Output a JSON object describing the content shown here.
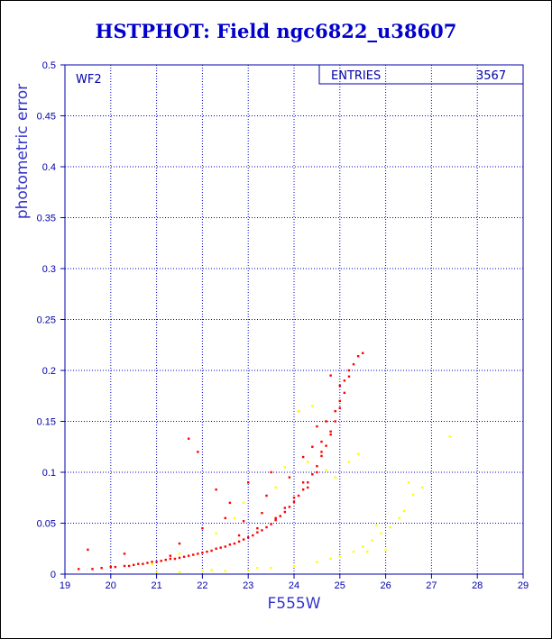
{
  "title": "HSTPHOT: Field ngc6822_u38607",
  "chart_data": {
    "type": "scatter",
    "panel_label": "WF2",
    "stats_label": "ENTRIES",
    "stats_value": "3567",
    "xlabel": "F555W",
    "ylabel": "photometric error",
    "xlim": [
      19,
      29
    ],
    "ylim": [
      0,
      0.5
    ],
    "x_ticks": [
      "19",
      "20",
      "21",
      "22",
      "23",
      "24",
      "25",
      "26",
      "27",
      "28",
      "29"
    ],
    "y_ticks": [
      "0",
      "0.05",
      "0.1",
      "0.15",
      "0.2",
      "0.25",
      "0.3",
      "0.35",
      "0.4",
      "0.45",
      "0.5"
    ],
    "grid": true,
    "series": [
      {
        "color": "#ff0000",
        "points": [
          [
            19.3,
            0.005
          ],
          [
            19.5,
            0.024
          ],
          [
            19.6,
            0.005
          ],
          [
            19.8,
            0.006
          ],
          [
            20.0,
            0.007
          ],
          [
            20.1,
            0.007
          ],
          [
            20.3,
            0.008
          ],
          [
            20.4,
            0.008
          ],
          [
            20.5,
            0.009
          ],
          [
            20.6,
            0.01
          ],
          [
            20.7,
            0.01
          ],
          [
            20.8,
            0.011
          ],
          [
            20.9,
            0.012
          ],
          [
            21.0,
            0.012
          ],
          [
            21.1,
            0.013
          ],
          [
            21.2,
            0.014
          ],
          [
            21.3,
            0.015
          ],
          [
            21.4,
            0.015
          ],
          [
            21.5,
            0.016
          ],
          [
            21.6,
            0.017
          ],
          [
            21.7,
            0.018
          ],
          [
            21.8,
            0.019
          ],
          [
            21.9,
            0.02
          ],
          [
            22.0,
            0.021
          ],
          [
            22.1,
            0.022
          ],
          [
            22.2,
            0.023
          ],
          [
            22.3,
            0.025
          ],
          [
            22.4,
            0.026
          ],
          [
            22.5,
            0.027
          ],
          [
            22.6,
            0.029
          ],
          [
            22.7,
            0.03
          ],
          [
            22.8,
            0.032
          ],
          [
            22.9,
            0.034
          ],
          [
            23.0,
            0.036
          ],
          [
            23.1,
            0.038
          ],
          [
            23.2,
            0.041
          ],
          [
            23.3,
            0.043
          ],
          [
            23.4,
            0.046
          ],
          [
            23.5,
            0.049
          ],
          [
            23.6,
            0.053
          ],
          [
            23.7,
            0.057
          ],
          [
            23.8,
            0.061
          ],
          [
            23.9,
            0.066
          ],
          [
            24.0,
            0.071
          ],
          [
            24.1,
            0.077
          ],
          [
            24.2,
            0.083
          ],
          [
            24.3,
            0.09
          ],
          [
            24.4,
            0.098
          ],
          [
            24.5,
            0.106
          ],
          [
            24.6,
            0.116
          ],
          [
            24.7,
            0.126
          ],
          [
            24.8,
            0.137
          ],
          [
            24.9,
            0.15
          ],
          [
            25.0,
            0.163
          ],
          [
            25.1,
            0.178
          ],
          [
            25.2,
            0.194
          ],
          [
            25.3,
            0.206
          ],
          [
            25.4,
            0.214
          ],
          [
            25.5,
            0.217
          ],
          [
            24.2,
            0.09
          ],
          [
            24.5,
            0.1
          ],
          [
            24.8,
            0.14
          ],
          [
            25.0,
            0.17
          ],
          [
            25.2,
            0.2
          ],
          [
            24.9,
            0.16
          ],
          [
            24.6,
            0.12
          ],
          [
            24.3,
            0.085
          ],
          [
            24.0,
            0.075
          ],
          [
            23.6,
            0.055
          ],
          [
            23.2,
            0.045
          ],
          [
            22.8,
            0.038
          ],
          [
            23.8,
            0.065
          ],
          [
            21.7,
            0.133
          ],
          [
            21.9,
            0.12
          ],
          [
            22.3,
            0.083
          ],
          [
            23.5,
            0.1
          ],
          [
            23.0,
            0.09
          ],
          [
            22.6,
            0.07
          ],
          [
            23.4,
            0.077
          ],
          [
            24.2,
            0.115
          ],
          [
            24.4,
            0.125
          ],
          [
            23.9,
            0.095
          ],
          [
            22.9,
            0.052
          ],
          [
            22.0,
            0.045
          ],
          [
            21.5,
            0.03
          ],
          [
            20.3,
            0.02
          ],
          [
            24.7,
            0.15
          ],
          [
            25.1,
            0.19
          ],
          [
            24.8,
            0.195
          ],
          [
            24.1,
            0.16
          ],
          [
            23.3,
            0.06
          ],
          [
            22.5,
            0.055
          ],
          [
            21.3,
            0.018
          ],
          [
            24.6,
            0.13
          ],
          [
            25.0,
            0.185
          ],
          [
            24.5,
            0.145
          ]
        ]
      },
      {
        "color": "#ffff00",
        "points": [
          [
            21.0,
            0.002
          ],
          [
            21.5,
            0.002
          ],
          [
            22.0,
            0.003
          ],
          [
            22.5,
            0.003
          ],
          [
            23.0,
            0.004
          ],
          [
            23.5,
            0.006
          ],
          [
            24.0,
            0.008
          ],
          [
            24.5,
            0.012
          ],
          [
            25.0,
            0.017
          ],
          [
            25.3,
            0.022
          ],
          [
            25.5,
            0.027
          ],
          [
            25.7,
            0.033
          ],
          [
            25.9,
            0.04
          ],
          [
            26.1,
            0.046
          ],
          [
            26.3,
            0.055
          ],
          [
            26.6,
            0.078
          ],
          [
            26.8,
            0.085
          ],
          [
            26.5,
            0.09
          ],
          [
            27.4,
            0.135
          ],
          [
            23.8,
            0.105
          ],
          [
            24.3,
            0.11
          ],
          [
            24.7,
            0.102
          ],
          [
            24.9,
            0.095
          ],
          [
            25.2,
            0.11
          ],
          [
            25.4,
            0.118
          ],
          [
            23.6,
            0.085
          ],
          [
            22.9,
            0.07
          ],
          [
            22.7,
            0.055
          ],
          [
            22.3,
            0.04
          ],
          [
            21.5,
            0.02
          ],
          [
            20.9,
            0.01
          ],
          [
            26.0,
            0.024
          ],
          [
            25.6,
            0.022
          ],
          [
            24.8,
            0.015
          ],
          [
            23.2,
            0.006
          ],
          [
            22.2,
            0.004
          ],
          [
            26.4,
            0.062
          ],
          [
            25.8,
            0.048
          ],
          [
            24.1,
            0.16
          ],
          [
            24.4,
            0.165
          ]
        ]
      }
    ]
  }
}
